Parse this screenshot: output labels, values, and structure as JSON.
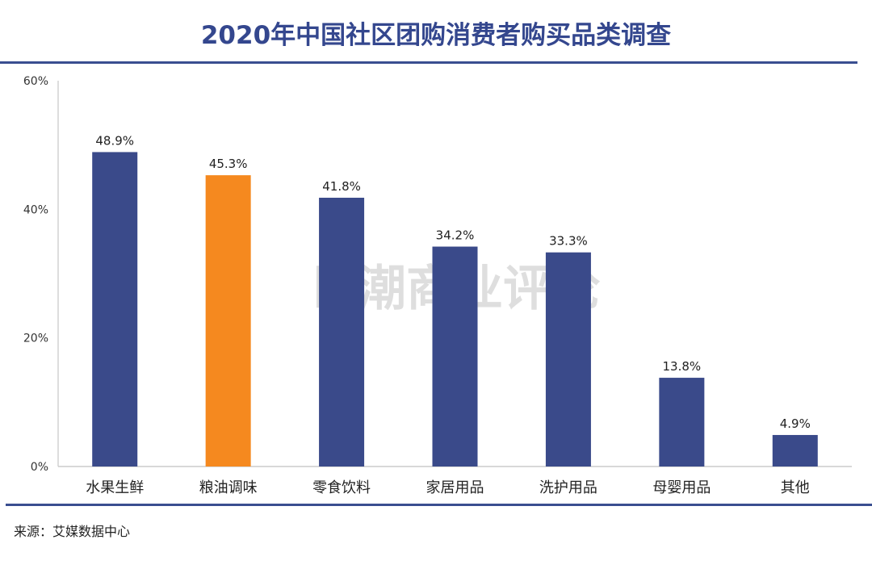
{
  "chart_data": {
    "type": "bar",
    "title": "2020年中国社区团购消费者购买品类调查",
    "categories": [
      "水果生鲜",
      "粮油调味",
      "零食饮料",
      "家居用品",
      "洗护用品",
      "母婴用品",
      "其他"
    ],
    "values": [
      48.9,
      45.3,
      41.8,
      34.2,
      33.3,
      13.8,
      4.9
    ],
    "data_labels": [
      "48.9%",
      "45.3%",
      "41.8%",
      "34.2%",
      "33.3%",
      "13.8%",
      "4.9%"
    ],
    "ylim": [
      0,
      60
    ],
    "yticks": [
      0,
      20,
      40,
      60
    ],
    "ytick_labels": [
      "0%",
      "20%",
      "40%",
      "60%"
    ],
    "xlabel": "",
    "ylabel": "",
    "grid": false,
    "colors": [
      "#3a4a8a",
      "#f5891f",
      "#3a4a8a",
      "#3a4a8a",
      "#3a4a8a",
      "#3a4a8a",
      "#3a4a8a"
    ]
  },
  "source": "来源：艾媒数据中心",
  "watermark": "巨潮商业评论"
}
